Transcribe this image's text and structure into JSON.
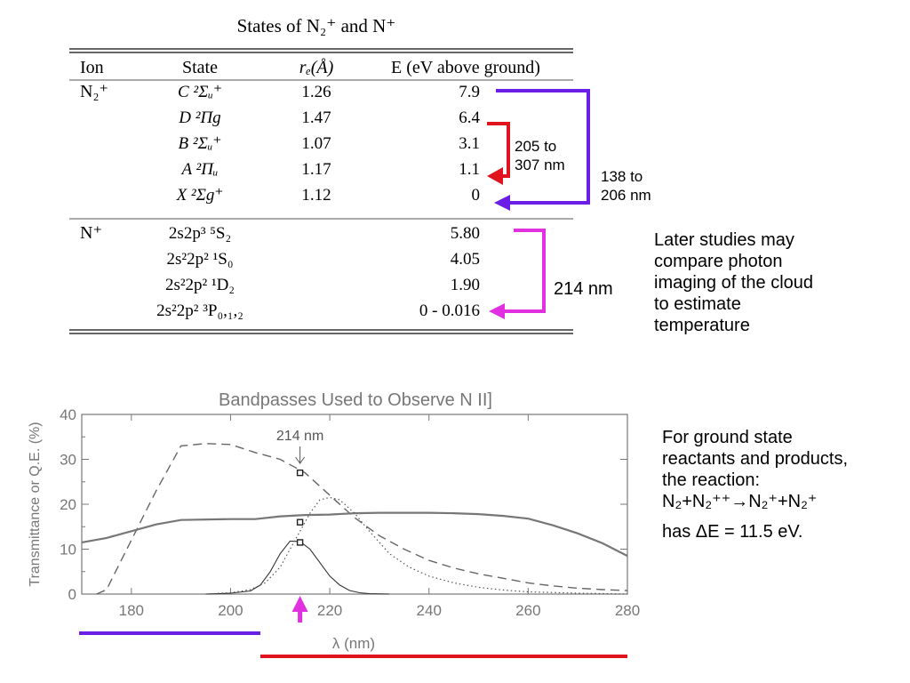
{
  "table": {
    "title": "States of N₂⁺ and N⁺",
    "headers": [
      "Ion",
      "State",
      "rₑ(Å)",
      "E (eV above ground)"
    ],
    "n2plus": {
      "ion": "N₂⁺",
      "rows": [
        {
          "state": "C ²Σᵤ⁺",
          "re": "1.26",
          "e": "7.9"
        },
        {
          "state": "D ²Πg",
          "re": "1.47",
          "e": "6.4"
        },
        {
          "state": "B ²Σᵤ⁺",
          "re": "1.07",
          "e": "3.1"
        },
        {
          "state": "A ²Πᵤ",
          "re": "1.17",
          "e": "1.1"
        },
        {
          "state": "X ²Σg⁺",
          "re": "1.12",
          "e": "0"
        }
      ]
    },
    "nplus": {
      "ion": "N⁺",
      "rows": [
        {
          "state": "2s2p³ ⁵S₂",
          "re": "",
          "e": "5.80"
        },
        {
          "state": "2s²2p² ¹S₀",
          "re": "",
          "e": "4.05"
        },
        {
          "state": "2s²2p² ¹D₂",
          "re": "",
          "e": "1.90"
        },
        {
          "state": "2s²2p² ³P₀,₁,₂",
          "re": "",
          "e": "0 - 0.016"
        }
      ]
    },
    "arrows": {
      "red": {
        "line1": "205 to",
        "line2": "307 nm",
        "color": "#e0141e"
      },
      "purple": {
        "line1": "138 to",
        "line2": "206 nm",
        "color": "#6a1ee6"
      },
      "magenta": {
        "label": "214 nm",
        "color": "#e030e0"
      }
    }
  },
  "notes": {
    "later": [
      "Later studies may",
      "compare photon",
      "imaging of the cloud",
      "to estimate",
      "temperature"
    ],
    "ground": {
      "l1": "For ground state",
      "l2": "reactants and products,",
      "l3": "the reaction:",
      "eq": "N₂+N₂⁺⁺→N₂⁺+N₂⁺",
      "de": "has ΔE = 11.5 eV."
    }
  },
  "chart_data": {
    "type": "line",
    "title": "Bandpasses Used to Observe N II]",
    "xlabel": "λ (nm)",
    "ylabel": "Transmittance or Q.E. (%)",
    "xlim": [
      170,
      280
    ],
    "ylim": [
      0,
      40
    ],
    "xticks": [
      180,
      200,
      220,
      240,
      260,
      280
    ],
    "yticks": [
      0,
      10,
      20,
      30,
      40
    ],
    "annotation": {
      "text": "214 nm",
      "x": 214
    },
    "series": [
      {
        "style": "dashed",
        "x": [
          173,
          175,
          180,
          185,
          190,
          195,
          200,
          205,
          210,
          215,
          220,
          225,
          230,
          235,
          240,
          245,
          250,
          255,
          260,
          265,
          270,
          275,
          280
        ],
        "y": [
          0,
          1,
          12,
          23,
          33,
          33.5,
          33.3,
          31.5,
          30,
          27,
          22,
          17,
          13,
          10,
          7.5,
          5.8,
          4.5,
          3.5,
          2.5,
          1.8,
          1.3,
          1,
          0.8
        ]
      },
      {
        "style": "solid",
        "x": [
          170,
          175,
          180,
          185,
          190,
          200,
          205,
          210,
          215,
          220,
          225,
          230,
          235,
          240,
          245,
          250,
          255,
          260,
          265,
          270,
          275,
          280
        ],
        "y": [
          11.5,
          12.5,
          14,
          15.5,
          16.5,
          16.7,
          16.7,
          17.3,
          17.6,
          17.7,
          18,
          18.1,
          18.1,
          18.1,
          18,
          17.8,
          17.4,
          16.8,
          15.3,
          13.5,
          11.3,
          8.5
        ]
      },
      {
        "style": "thin-solid",
        "x": [
          195,
          200,
          204,
          206,
          208,
          210,
          212,
          214,
          216,
          218,
          220,
          222,
          224,
          226,
          228,
          232
        ],
        "y": [
          0,
          0.2,
          0.7,
          2,
          5,
          9,
          11.8,
          11.7,
          10,
          7,
          4,
          2,
          0.8,
          0.3,
          0.1,
          0
        ]
      },
      {
        "style": "dotted",
        "x": [
          195,
          200,
          204,
          207,
          210,
          213,
          216,
          218,
          220,
          222,
          225,
          228,
          232,
          236,
          240,
          245,
          250,
          255,
          260,
          270,
          280
        ],
        "y": [
          0,
          0.3,
          1,
          2.5,
          6,
          12,
          18,
          21,
          21.5,
          21,
          18,
          14,
          9,
          6,
          4,
          2.5,
          1.5,
          0.9,
          0.5,
          0.2,
          0
        ]
      }
    ],
    "markers": [
      {
        "x": 214,
        "y": 27
      },
      {
        "x": 214,
        "y": 16
      },
      {
        "x": 214,
        "y": 11.5
      }
    ],
    "bands": [
      {
        "name": "",
        "from": 170,
        "to": 206,
        "color": "#6a1ee6"
      },
      {
        "name": "",
        "from": 206,
        "to": 280,
        "color": "#e0141e"
      }
    ],
    "highlight": {
      "x": 214,
      "color": "#e030e0"
    }
  }
}
